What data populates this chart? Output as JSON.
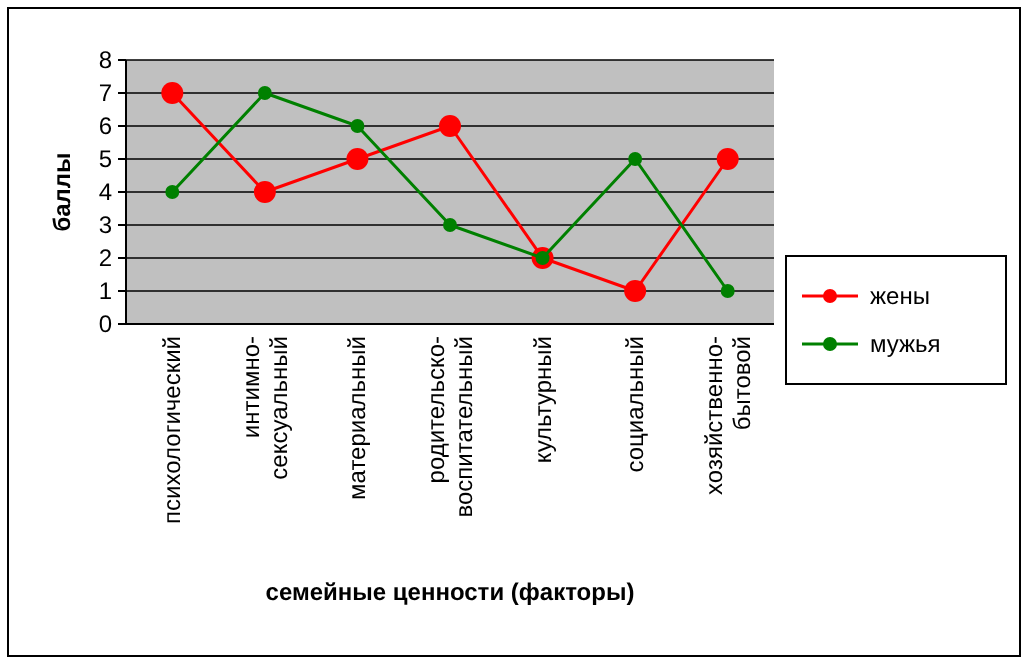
{
  "chart_data": {
    "type": "line",
    "xlabel": "семейные ценности (факторы)",
    "ylabel": "баллы",
    "categories": [
      "психологический",
      "интимно-\nсексуальный",
      "материальный",
      "родительско-\nвоспитательный",
      "культурный",
      "социальный",
      "хозяйственно-\nбытовой"
    ],
    "series": [
      {
        "name": "жены",
        "color": "#ff0000",
        "values": [
          7,
          4,
          5,
          6,
          2,
          1,
          5
        ]
      },
      {
        "name": "мужья",
        "color": "#008000",
        "values": [
          4,
          7,
          6,
          3,
          2,
          5,
          1
        ]
      }
    ],
    "ylim": [
      0,
      8
    ],
    "yticks": [
      0,
      1,
      2,
      3,
      4,
      5,
      6,
      7,
      8
    ],
    "grid": "y",
    "legend": "right",
    "marker": "circle",
    "line_style": "solid"
  }
}
